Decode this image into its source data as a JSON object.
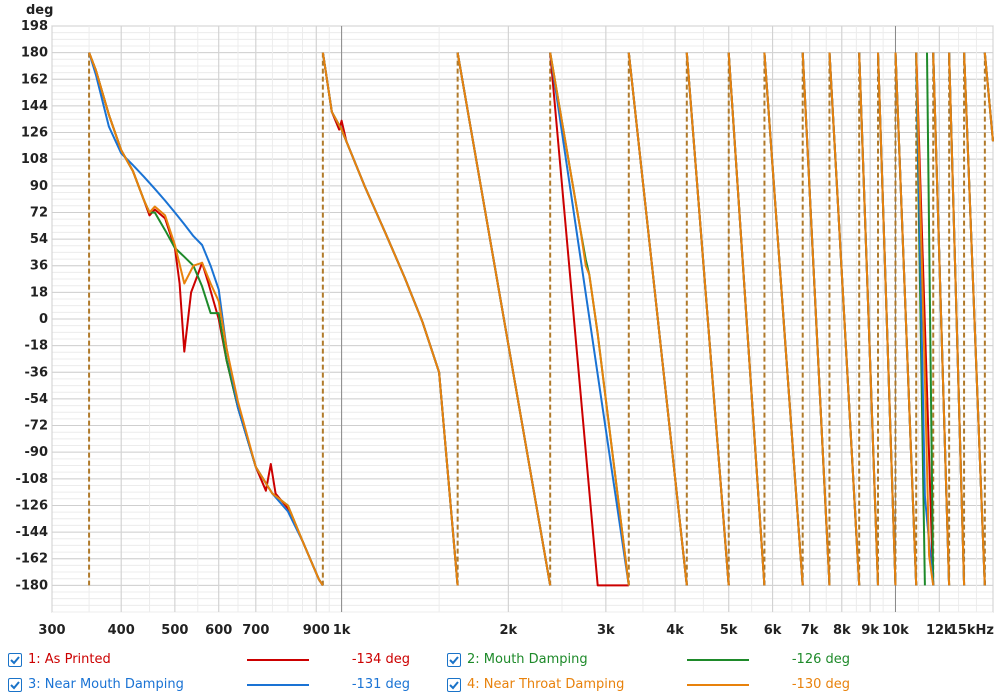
{
  "chart_data": {
    "type": "line",
    "title": "",
    "xlabel": "",
    "ylabel": "deg",
    "x_scale": "log",
    "xlim": [
      300,
      15000
    ],
    "ylim": [
      -198,
      198
    ],
    "x_unit": "kHz",
    "y_ticks": [
      198,
      180,
      162,
      144,
      126,
      108,
      90,
      72,
      54,
      36,
      18,
      0,
      -18,
      -36,
      -54,
      -72,
      -90,
      -108,
      -126,
      -144,
      -162,
      -180
    ],
    "y_tick_labels": [
      "198",
      "180",
      "162",
      "144",
      "126",
      "108",
      "90",
      "72",
      "54",
      "36",
      "18",
      "0",
      "-18",
      "-36",
      "-54",
      "-72",
      "-90",
      "-108",
      "-126",
      "-144",
      "-162",
      "-180"
    ],
    "x_ticks": [
      300,
      400,
      500,
      600,
      700,
      900,
      1000,
      2000,
      3000,
      4000,
      5000,
      6000,
      7000,
      8000,
      9000,
      10000,
      12000,
      15000
    ],
    "x_tick_labels": [
      "300",
      "400",
      "500",
      "600",
      "700",
      "900",
      "1k",
      "2k",
      "3k",
      "4k",
      "5k",
      "6k",
      "7k",
      "8k",
      "9k",
      "10k",
      "12k",
      "15kHz"
    ],
    "grid": true,
    "legend_position": "bottom",
    "wrap_frequencies": [
      350,
      925,
      1620,
      2380,
      3300,
      4200,
      5000,
      5800,
      6800,
      7600,
      8600,
      9300,
      10000,
      10900,
      11700,
      12500,
      13300,
      14500
    ],
    "series": [
      {
        "name": "1: As Printed",
        "color": "#cc0000",
        "readout": "-134 deg",
        "points": [
          [
            350,
            180
          ],
          [
            360,
            168
          ],
          [
            380,
            138
          ],
          [
            400,
            114
          ],
          [
            420,
            100
          ],
          [
            440,
            80
          ],
          [
            450,
            70
          ],
          [
            460,
            74
          ],
          [
            480,
            68
          ],
          [
            500,
            48
          ],
          [
            510,
            24
          ],
          [
            520,
            -22
          ],
          [
            535,
            18
          ],
          [
            550,
            30
          ],
          [
            560,
            38
          ],
          [
            575,
            24
          ],
          [
            600,
            0
          ],
          [
            620,
            -28
          ],
          [
            650,
            -60
          ],
          [
            700,
            -100
          ],
          [
            730,
            -116
          ],
          [
            745,
            -98
          ],
          [
            760,
            -118
          ],
          [
            800,
            -128
          ],
          [
            850,
            -150
          ],
          [
            910,
            -176
          ],
          [
            925,
            -180
          ],
          [
            925,
            180
          ],
          [
            960,
            140
          ],
          [
            990,
            128
          ],
          [
            1000,
            134
          ],
          [
            1020,
            120
          ],
          [
            1100,
            90
          ],
          [
            1200,
            58
          ],
          [
            1300,
            28
          ],
          [
            1400,
            -2
          ],
          [
            1500,
            -36
          ],
          [
            1620,
            -180
          ],
          [
            1620,
            180
          ],
          [
            2380,
            -180
          ],
          [
            2380,
            180
          ],
          [
            2900,
            -180
          ],
          [
            3300,
            -180
          ],
          [
            3300,
            180
          ],
          [
            4200,
            -180
          ],
          [
            4200,
            180
          ],
          [
            5000,
            -180
          ],
          [
            5000,
            180
          ],
          [
            5800,
            -180
          ],
          [
            5800,
            180
          ],
          [
            6800,
            -180
          ],
          [
            6800,
            180
          ],
          [
            7600,
            -180
          ],
          [
            7600,
            180
          ],
          [
            8600,
            -180
          ],
          [
            8600,
            180
          ],
          [
            9300,
            -180
          ],
          [
            9300,
            180
          ],
          [
            10000,
            -180
          ],
          [
            10000,
            180
          ],
          [
            10900,
            -180
          ],
          [
            10900,
            180
          ],
          [
            11700,
            -180
          ],
          [
            11700,
            180
          ],
          [
            12500,
            -180
          ],
          [
            12500,
            180
          ],
          [
            13300,
            -180
          ],
          [
            13300,
            180
          ],
          [
            14500,
            -180
          ],
          [
            14500,
            180
          ],
          [
            15000,
            120
          ]
        ]
      },
      {
        "name": "2: Mouth Damping",
        "color": "#1e8a2a",
        "readout": "-126 deg",
        "points": [
          [
            350,
            180
          ],
          [
            360,
            168
          ],
          [
            380,
            138
          ],
          [
            400,
            114
          ],
          [
            420,
            100
          ],
          [
            440,
            80
          ],
          [
            450,
            72
          ],
          [
            460,
            72
          ],
          [
            480,
            60
          ],
          [
            500,
            48
          ],
          [
            520,
            42
          ],
          [
            540,
            36
          ],
          [
            560,
            22
          ],
          [
            580,
            4
          ],
          [
            600,
            4
          ],
          [
            620,
            -28
          ],
          [
            650,
            -60
          ],
          [
            700,
            -100
          ],
          [
            750,
            -118
          ],
          [
            800,
            -126
          ],
          [
            850,
            -150
          ],
          [
            910,
            -176
          ],
          [
            925,
            -180
          ],
          [
            925,
            180
          ],
          [
            960,
            140
          ],
          [
            1000,
            128
          ],
          [
            1100,
            90
          ],
          [
            1200,
            58
          ],
          [
            1300,
            28
          ],
          [
            1400,
            -2
          ],
          [
            1500,
            -36
          ],
          [
            1620,
            -180
          ],
          [
            1620,
            180
          ],
          [
            2380,
            -180
          ],
          [
            2380,
            180
          ],
          [
            2700,
            60
          ],
          [
            2760,
            40
          ],
          [
            2800,
            30
          ],
          [
            2900,
            -10
          ],
          [
            3300,
            -180
          ],
          [
            3300,
            180
          ],
          [
            4200,
            -180
          ],
          [
            4200,
            180
          ],
          [
            5000,
            -180
          ],
          [
            5000,
            180
          ],
          [
            5800,
            -180
          ],
          [
            5800,
            180
          ],
          [
            6800,
            -180
          ],
          [
            6800,
            180
          ],
          [
            7600,
            -180
          ],
          [
            7600,
            180
          ],
          [
            8600,
            -180
          ],
          [
            8600,
            180
          ],
          [
            9300,
            -180
          ],
          [
            9300,
            180
          ],
          [
            10000,
            -180
          ],
          [
            10000,
            180
          ],
          [
            10900,
            -180
          ],
          [
            10900,
            180
          ],
          [
            11300,
            -180
          ],
          [
            11400,
            180
          ],
          [
            11700,
            -180
          ],
          [
            11700,
            180
          ],
          [
            12500,
            -180
          ],
          [
            12500,
            180
          ],
          [
            13300,
            -180
          ],
          [
            13300,
            180
          ],
          [
            14500,
            -180
          ],
          [
            14500,
            180
          ],
          [
            15000,
            120
          ]
        ]
      },
      {
        "name": "3: Near Mouth Damping",
        "color": "#1a73d4",
        "readout": "-131 deg",
        "points": [
          [
            350,
            180
          ],
          [
            360,
            165
          ],
          [
            380,
            130
          ],
          [
            400,
            112
          ],
          [
            420,
            104
          ],
          [
            440,
            96
          ],
          [
            460,
            88
          ],
          [
            480,
            80
          ],
          [
            500,
            72
          ],
          [
            520,
            64
          ],
          [
            540,
            56
          ],
          [
            560,
            50
          ],
          [
            580,
            36
          ],
          [
            600,
            20
          ],
          [
            620,
            -20
          ],
          [
            650,
            -60
          ],
          [
            700,
            -100
          ],
          [
            750,
            -118
          ],
          [
            800,
            -130
          ],
          [
            850,
            -150
          ],
          [
            910,
            -176
          ],
          [
            925,
            -180
          ],
          [
            925,
            180
          ],
          [
            960,
            140
          ],
          [
            1000,
            128
          ],
          [
            1100,
            90
          ],
          [
            1200,
            58
          ],
          [
            1300,
            28
          ],
          [
            1400,
            -2
          ],
          [
            1500,
            -36
          ],
          [
            1620,
            -180
          ],
          [
            1620,
            180
          ],
          [
            2380,
            -180
          ],
          [
            2380,
            180
          ],
          [
            3300,
            -180
          ],
          [
            3300,
            180
          ],
          [
            4200,
            -180
          ],
          [
            4200,
            180
          ],
          [
            5000,
            -180
          ],
          [
            5000,
            180
          ],
          [
            5800,
            -180
          ],
          [
            5800,
            180
          ],
          [
            6800,
            -180
          ],
          [
            6800,
            180
          ],
          [
            7600,
            -180
          ],
          [
            7600,
            180
          ],
          [
            8600,
            -180
          ],
          [
            8600,
            180
          ],
          [
            9300,
            -180
          ],
          [
            9300,
            180
          ],
          [
            10000,
            -180
          ],
          [
            10000,
            180
          ],
          [
            10900,
            -180
          ],
          [
            10900,
            180
          ],
          [
            11300,
            -120
          ],
          [
            11700,
            -180
          ],
          [
            11700,
            180
          ],
          [
            12500,
            -180
          ],
          [
            12500,
            180
          ],
          [
            13300,
            -180
          ],
          [
            13300,
            180
          ],
          [
            14500,
            -180
          ],
          [
            14500,
            180
          ],
          [
            15000,
            120
          ]
        ]
      },
      {
        "name": "4: Near Throat Damping",
        "color": "#e8820c",
        "readout": "-130 deg",
        "points": [
          [
            350,
            180
          ],
          [
            360,
            168
          ],
          [
            380,
            138
          ],
          [
            400,
            114
          ],
          [
            420,
            100
          ],
          [
            440,
            80
          ],
          [
            450,
            72
          ],
          [
            460,
            76
          ],
          [
            480,
            70
          ],
          [
            500,
            50
          ],
          [
            520,
            24
          ],
          [
            540,
            36
          ],
          [
            560,
            38
          ],
          [
            580,
            24
          ],
          [
            600,
            12
          ],
          [
            620,
            -20
          ],
          [
            650,
            -56
          ],
          [
            700,
            -100
          ],
          [
            750,
            -118
          ],
          [
            800,
            -126
          ],
          [
            850,
            -150
          ],
          [
            910,
            -176
          ],
          [
            925,
            -180
          ],
          [
            925,
            180
          ],
          [
            960,
            140
          ],
          [
            1000,
            128
          ],
          [
            1100,
            90
          ],
          [
            1200,
            58
          ],
          [
            1300,
            28
          ],
          [
            1400,
            -2
          ],
          [
            1500,
            -36
          ],
          [
            1620,
            -180
          ],
          [
            1620,
            180
          ],
          [
            2380,
            -180
          ],
          [
            2380,
            180
          ],
          [
            2700,
            60
          ],
          [
            2760,
            36
          ],
          [
            2800,
            30
          ],
          [
            2900,
            -10
          ],
          [
            3300,
            -180
          ],
          [
            3300,
            180
          ],
          [
            4200,
            -180
          ],
          [
            4200,
            180
          ],
          [
            5000,
            -180
          ],
          [
            5000,
            180
          ],
          [
            5800,
            -180
          ],
          [
            5800,
            180
          ],
          [
            6800,
            -180
          ],
          [
            6800,
            180
          ],
          [
            7600,
            -180
          ],
          [
            7600,
            180
          ],
          [
            8600,
            -180
          ],
          [
            8600,
            180
          ],
          [
            9300,
            -180
          ],
          [
            9300,
            180
          ],
          [
            10000,
            -180
          ],
          [
            10000,
            180
          ],
          [
            10900,
            -180
          ],
          [
            10900,
            180
          ],
          [
            11300,
            -40
          ],
          [
            11500,
            -160
          ],
          [
            11700,
            -180
          ],
          [
            11700,
            180
          ],
          [
            12500,
            -180
          ],
          [
            12500,
            180
          ],
          [
            13300,
            -180
          ],
          [
            13300,
            180
          ],
          [
            14500,
            -180
          ],
          [
            14500,
            180
          ],
          [
            15000,
            120
          ]
        ]
      }
    ]
  },
  "legend": {
    "items": [
      {
        "label": "1: As Printed",
        "color": "#cc0000",
        "value": "-134 deg",
        "checked": true
      },
      {
        "label": "2: Mouth Damping",
        "color": "#1e8a2a",
        "value": "-126 deg",
        "checked": true
      },
      {
        "label": "3: Near Mouth Damping",
        "color": "#1a73d4",
        "value": "-131 deg",
        "checked": true
      },
      {
        "label": "4: Near Throat Damping",
        "color": "#e8820c",
        "value": "-130 deg",
        "checked": true
      }
    ]
  }
}
